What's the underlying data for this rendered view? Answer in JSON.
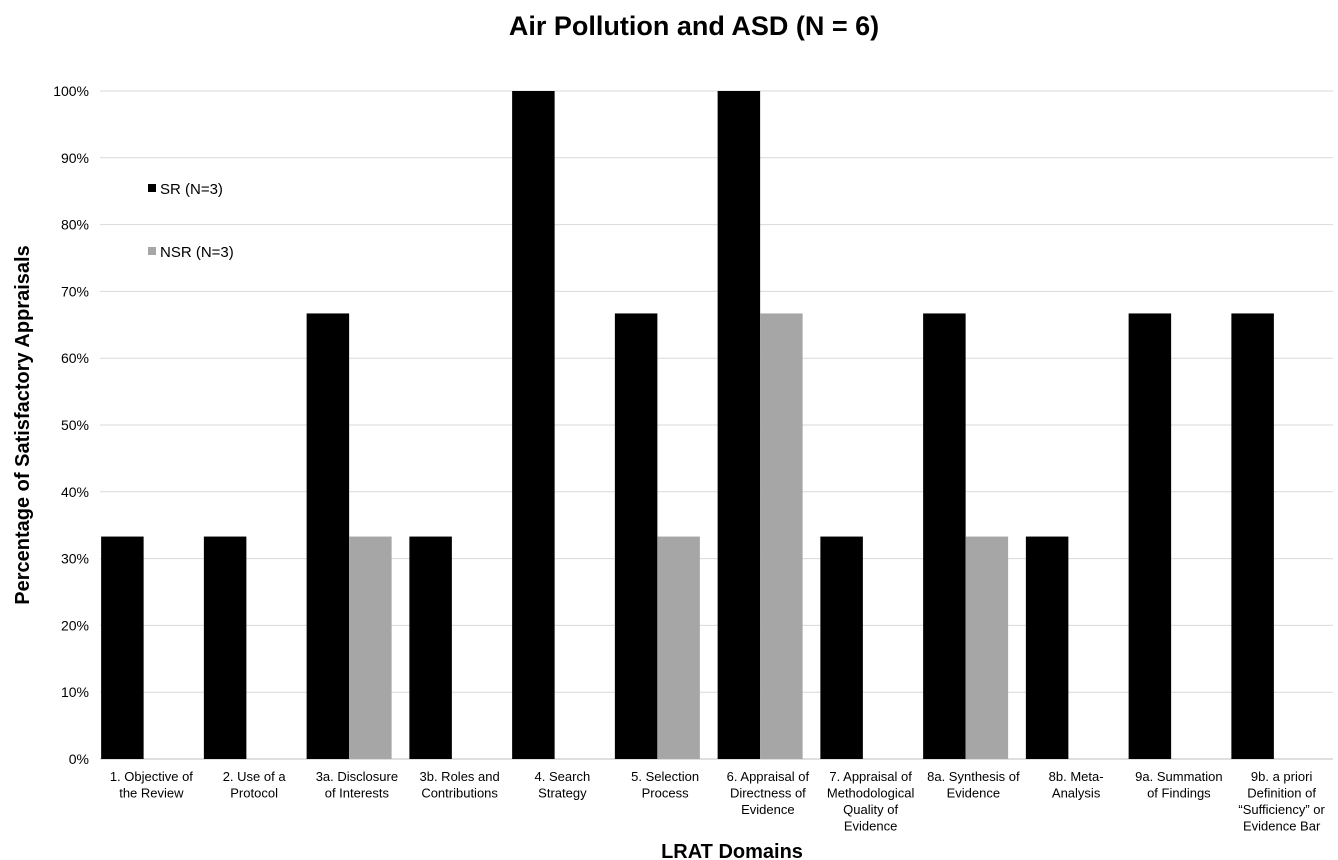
{
  "chart_data": {
    "type": "bar",
    "title": "Air Pollution and ASD (N = 6)",
    "xlabel": "LRAT Domains",
    "ylabel": "Percentage of Satisfactory Appraisals",
    "ylim": [
      0,
      100
    ],
    "yticks": [
      0,
      10,
      20,
      30,
      40,
      50,
      60,
      70,
      80,
      90,
      100
    ],
    "ytick_suffix": "%",
    "grid": true,
    "legend_position": "top-left",
    "categories": [
      [
        "1. Objective of",
        "the Review"
      ],
      [
        "2. Use of a",
        "Protocol"
      ],
      [
        "3a. Disclosure",
        "of Interests"
      ],
      [
        "3b. Roles and",
        "Contributions"
      ],
      [
        "4. Search",
        "Strategy"
      ],
      [
        "5. Selection",
        "Process"
      ],
      [
        "6. Appraisal of",
        "Directness of",
        "Evidence"
      ],
      [
        "7. Appraisal of",
        "Methodological",
        "Quality of",
        "Evidence"
      ],
      [
        "8a. Synthesis of",
        "Evidence"
      ],
      [
        "8b. Meta-",
        "Analysis"
      ],
      [
        "9a. Summation",
        "of Findings"
      ],
      [
        "9b. a priori",
        "Definition of",
        "“Sufficiency” or",
        "Evidence Bar"
      ]
    ],
    "series": [
      {
        "name": "SR (N=3)",
        "color": "#000000",
        "values": [
          33.3,
          33.3,
          66.7,
          33.3,
          100,
          66.7,
          100,
          33.3,
          66.7,
          33.3,
          66.7,
          66.7
        ]
      },
      {
        "name": "NSR (N=3)",
        "color": "#a6a6a6",
        "values": [
          0,
          0,
          33.3,
          0,
          0,
          33.3,
          66.7,
          0,
          33.3,
          0,
          0,
          0
        ]
      }
    ]
  }
}
